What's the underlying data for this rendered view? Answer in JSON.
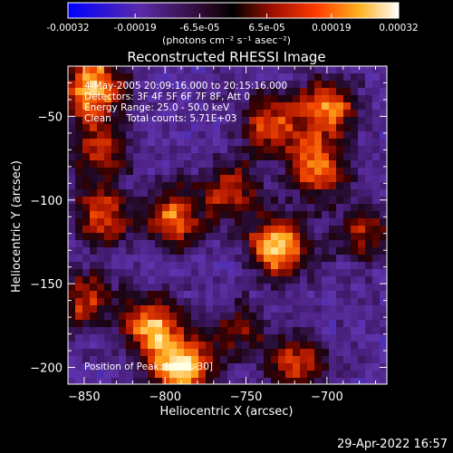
{
  "colorbar": {
    "tick_labels": [
      "-0.00032",
      "-0.00019",
      "-6.5e-05",
      "6.5e-05",
      "0.00019",
      "0.00032"
    ],
    "tick_values": [
      -0.00032,
      -0.00019,
      -6.5e-05,
      6.5e-05,
      0.00019,
      0.00032
    ],
    "units": "(photons cm⁻² s⁻¹ asec⁻²)",
    "range": [
      -0.00032,
      0.00032
    ]
  },
  "footer_date": "29-Apr-2022 16:57",
  "chart_data": {
    "type": "heatmap",
    "title": "Reconstructed RHESSI Image",
    "xlabel": "Heliocentric X (arcsec)",
    "ylabel": "Heliocentric Y (arcsec)",
    "xlim": [
      -860,
      -663
    ],
    "ylim": [
      -210,
      -20
    ],
    "xticks": [
      -850,
      -800,
      -750,
      -700
    ],
    "yticks": [
      -50,
      -100,
      -150,
      -200
    ],
    "xtick_labels": [
      "−850",
      "−800",
      "−750",
      "−700"
    ],
    "ytick_labels": [
      "−50",
      "−100",
      "−150",
      "−200"
    ],
    "annotations": [
      "4-May-2005 20:09:16.000 to 20:15:16.000",
      "Detectors: 3F 4F 5F 6F 7F 8F, Att 0",
      "Energy Range: 25.0 - 50.0 keV",
      "Clean     Total counts: 5.71E+03"
    ],
    "peak_label": "Position of Peak: [-855,-30]",
    "peak": [
      -855,
      -30
    ],
    "bright_regions": [
      {
        "x": -845,
        "y": -32,
        "level": 0.95
      },
      {
        "x": -790,
        "y": -200,
        "level": 1.0
      },
      {
        "x": -808,
        "y": -175,
        "level": 0.8
      },
      {
        "x": -795,
        "y": -110,
        "level": 0.7
      },
      {
        "x": -730,
        "y": -128,
        "level": 0.95
      },
      {
        "x": -705,
        "y": -80,
        "level": 0.75
      },
      {
        "x": -700,
        "y": -45,
        "level": 0.75
      },
      {
        "x": -735,
        "y": -55,
        "level": 0.65
      },
      {
        "x": -760,
        "y": -95,
        "level": 0.55
      },
      {
        "x": -838,
        "y": -110,
        "level": 0.6
      },
      {
        "x": -840,
        "y": -70,
        "level": 0.6
      },
      {
        "x": -850,
        "y": -160,
        "level": 0.55
      },
      {
        "x": -720,
        "y": -198,
        "level": 0.6
      },
      {
        "x": -678,
        "y": -120,
        "level": 0.45
      },
      {
        "x": -755,
        "y": -180,
        "level": 0.4
      }
    ]
  }
}
